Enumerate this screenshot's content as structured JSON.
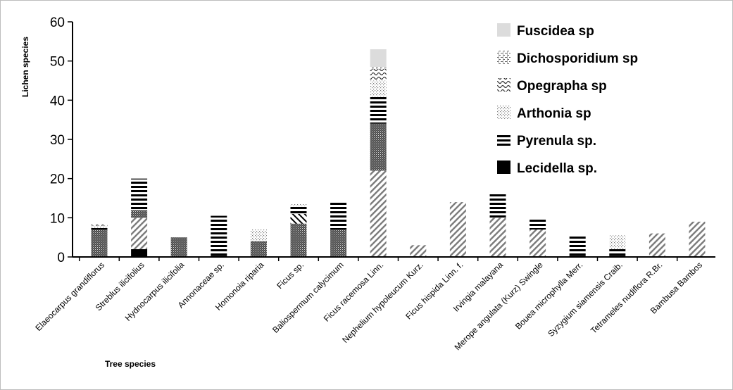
{
  "chart_data": {
    "type": "bar",
    "stacked": true,
    "ylabel": "Lichen species",
    "xlabel": "Tree species",
    "ylim": [
      0,
      60
    ],
    "yticks": [
      0,
      10,
      20,
      30,
      40,
      50,
      60
    ],
    "legend_position": "top-right",
    "categories": [
      "Elaeocarpus grandiflorus",
      "Streblus ilicifolius",
      "Hydnocarpus ilicifolia",
      "Annonaceae sp.",
      "Homonoia riparia",
      "Ficus sp.",
      "Baliospermum calycimum",
      "Ficus racemosa Linn.",
      "Nephelium hypoleucum Kurz.",
      "Ficus hispida Linn. f.",
      "Irvingia malayana",
      "Merope angulata (Kurz) Swingle",
      "Bouea microphylla Merr.",
      "Syzygium siamensis Craib.",
      "Tetrameles nudiflora R.Br.",
      "Bambusa Bambos"
    ],
    "series": [
      {
        "name": "Lecidella sp.",
        "pattern": "solid-black",
        "values": [
          0,
          2,
          0,
          0.5,
          0,
          0,
          0,
          0,
          0,
          0,
          0,
          0,
          0.5,
          0.5,
          0,
          0
        ]
      },
      {
        "name": "",
        "pattern": "wide-diagonal",
        "values": [
          0,
          8,
          0,
          0,
          0,
          0,
          0,
          22,
          3,
          14,
          10,
          7,
          0,
          0,
          6,
          9
        ]
      },
      {
        "name": "",
        "pattern": "dense-dots",
        "values": [
          7,
          2,
          5,
          0,
          4,
          8.5,
          7,
          12,
          0,
          0,
          0,
          0,
          0,
          0,
          0,
          0
        ]
      },
      {
        "name": "",
        "pattern": "light-diagonal",
        "values": [
          0,
          0,
          0,
          0,
          0,
          2.5,
          0,
          0,
          0,
          0,
          0,
          0,
          0,
          0,
          0,
          0
        ]
      },
      {
        "name": "Pyrenula sp.",
        "pattern": "horizontal-stripes",
        "values": [
          0.5,
          8,
          0,
          10,
          0,
          2,
          7,
          7,
          0,
          0,
          6,
          3,
          5,
          1.5,
          0,
          0
        ]
      },
      {
        "name": "Arthonia sp",
        "pattern": "sparse-dots",
        "values": [
          0.5,
          0,
          0,
          0,
          3,
          0.5,
          0,
          4,
          0,
          0,
          0,
          0,
          0,
          3.5,
          0,
          0
        ]
      },
      {
        "name": "Opegrapha sp",
        "pattern": "wavy",
        "values": [
          0.5,
          0,
          0,
          0,
          0,
          0,
          0,
          3,
          0,
          0,
          0,
          0,
          0,
          0,
          0,
          0
        ]
      },
      {
        "name": "Dichosporidium sp",
        "pattern": "dashed",
        "values": [
          0,
          0,
          0,
          0,
          0,
          0,
          0,
          0.5,
          0,
          0,
          0,
          0,
          0,
          0,
          0,
          0
        ]
      },
      {
        "name": "Fuscidea sp",
        "pattern": "light-gray",
        "values": [
          0,
          0,
          0,
          0,
          0,
          0,
          0,
          4.5,
          0,
          0,
          0,
          0,
          0,
          0,
          0,
          0
        ]
      }
    ],
    "legend": [
      {
        "name": "Fuscidea sp",
        "pattern": "light-gray"
      },
      {
        "name": "Dichosporidium sp",
        "pattern": "dashed"
      },
      {
        "name": "Opegrapha sp",
        "pattern": "wavy"
      },
      {
        "name": "Arthonia sp",
        "pattern": "sparse-dots"
      },
      {
        "name": "Pyrenula sp.",
        "pattern": "horizontal-stripes"
      },
      {
        "name": "Lecidella sp.",
        "pattern": "solid-black"
      }
    ]
  }
}
